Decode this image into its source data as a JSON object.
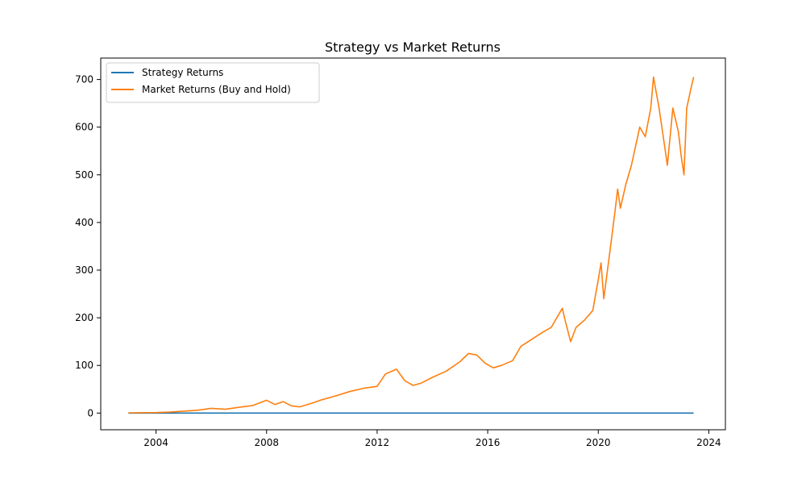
{
  "chart_data": {
    "type": "line",
    "title": "Strategy vs Market Returns",
    "xlabel": "",
    "ylabel": "",
    "xlim": [
      2002.0,
      2024.6
    ],
    "ylim": [
      -35,
      745
    ],
    "xticks": [
      2004,
      2008,
      2012,
      2016,
      2020,
      2024
    ],
    "xtick_labels": [
      "2004",
      "2008",
      "2012",
      "2016",
      "2020",
      "2024"
    ],
    "yticks": [
      0,
      100,
      200,
      300,
      400,
      500,
      600,
      700
    ],
    "ytick_labels": [
      "0",
      "100",
      "200",
      "300",
      "400",
      "500",
      "600",
      "700"
    ],
    "grid": false,
    "legend_position": "upper left",
    "series": [
      {
        "name": "Strategy Returns",
        "color": "#1f77b4",
        "x": [
          2003.0,
          2023.45
        ],
        "y": [
          0,
          0
        ]
      },
      {
        "name": "Market Returns (Buy and Hold)",
        "color": "#ff7f0e",
        "x": [
          2003.0,
          2004.0,
          2004.5,
          2005.0,
          2005.5,
          2006.0,
          2006.5,
          2007.0,
          2007.5,
          2008.0,
          2008.3,
          2008.6,
          2008.9,
          2009.2,
          2009.6,
          2010.0,
          2010.5,
          2011.0,
          2011.5,
          2012.0,
          2012.3,
          2012.7,
          2013.0,
          2013.3,
          2013.6,
          2014.0,
          2014.5,
          2015.0,
          2015.3,
          2015.6,
          2015.9,
          2016.2,
          2016.5,
          2016.9,
          2017.2,
          2017.6,
          2018.0,
          2018.3,
          2018.7,
          2018.8,
          2019.0,
          2019.2,
          2019.5,
          2019.8,
          2020.0,
          2020.1,
          2020.2,
          2020.4,
          2020.6,
          2020.7,
          2020.8,
          2021.0,
          2021.2,
          2021.5,
          2021.7,
          2021.9,
          2022.0,
          2022.2,
          2022.4,
          2022.5,
          2022.7,
          2022.9,
          2023.0,
          2023.1,
          2023.2,
          2023.35,
          2023.45
        ],
        "y": [
          0.5,
          1,
          2,
          4,
          6,
          10,
          8,
          12,
          16,
          27,
          18,
          24,
          15,
          13,
          20,
          28,
          36,
          45,
          52,
          56,
          82,
          92,
          68,
          58,
          63,
          75,
          88,
          108,
          125,
          122,
          105,
          95,
          100,
          110,
          140,
          155,
          170,
          180,
          220,
          195,
          150,
          180,
          195,
          215,
          280,
          315,
          240,
          330,
          420,
          470,
          430,
          480,
          520,
          600,
          580,
          640,
          705,
          640,
          560,
          520,
          640,
          590,
          540,
          500,
          640,
          680,
          705
        ]
      }
    ]
  }
}
